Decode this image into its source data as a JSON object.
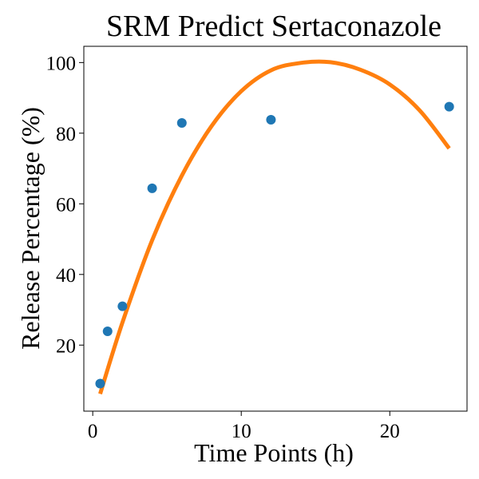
{
  "chart_data": {
    "type": "scatter",
    "title": "SRM Predict Sertaconazole",
    "xlabel": "Time Points (h)",
    "ylabel": "Release Percentage (%)",
    "xlim": [
      -0.6,
      25.2
    ],
    "ylim": [
      1.3,
      104.6
    ],
    "x_ticks": [
      0,
      10,
      20
    ],
    "y_ticks": [
      20,
      40,
      60,
      80,
      100
    ],
    "grid": false,
    "series": [
      {
        "kind": "scatter",
        "color": "#1f77b4",
        "points": [
          {
            "x": 0.5,
            "y": 9.1
          },
          {
            "x": 1,
            "y": 23.9
          },
          {
            "x": 2,
            "y": 31.0
          },
          {
            "x": 4,
            "y": 64.4
          },
          {
            "x": 6,
            "y": 82.9
          },
          {
            "x": 12,
            "y": 83.8
          },
          {
            "x": 24,
            "y": 87.5
          }
        ]
      },
      {
        "kind": "line",
        "color": "#ff7f0e",
        "points": [
          {
            "x": 0.5,
            "y": 6.2
          },
          {
            "x": 2,
            "y": 26.4
          },
          {
            "x": 4,
            "y": 49.7
          },
          {
            "x": 6,
            "y": 68.0
          },
          {
            "x": 8,
            "y": 82.0
          },
          {
            "x": 10,
            "y": 91.9
          },
          {
            "x": 12,
            "y": 97.8
          },
          {
            "x": 14,
            "y": 99.9
          },
          {
            "x": 16,
            "y": 100.1
          },
          {
            "x": 18,
            "y": 98.0
          },
          {
            "x": 20,
            "y": 93.8
          },
          {
            "x": 22,
            "y": 86.5
          },
          {
            "x": 24,
            "y": 75.7
          }
        ]
      }
    ]
  }
}
